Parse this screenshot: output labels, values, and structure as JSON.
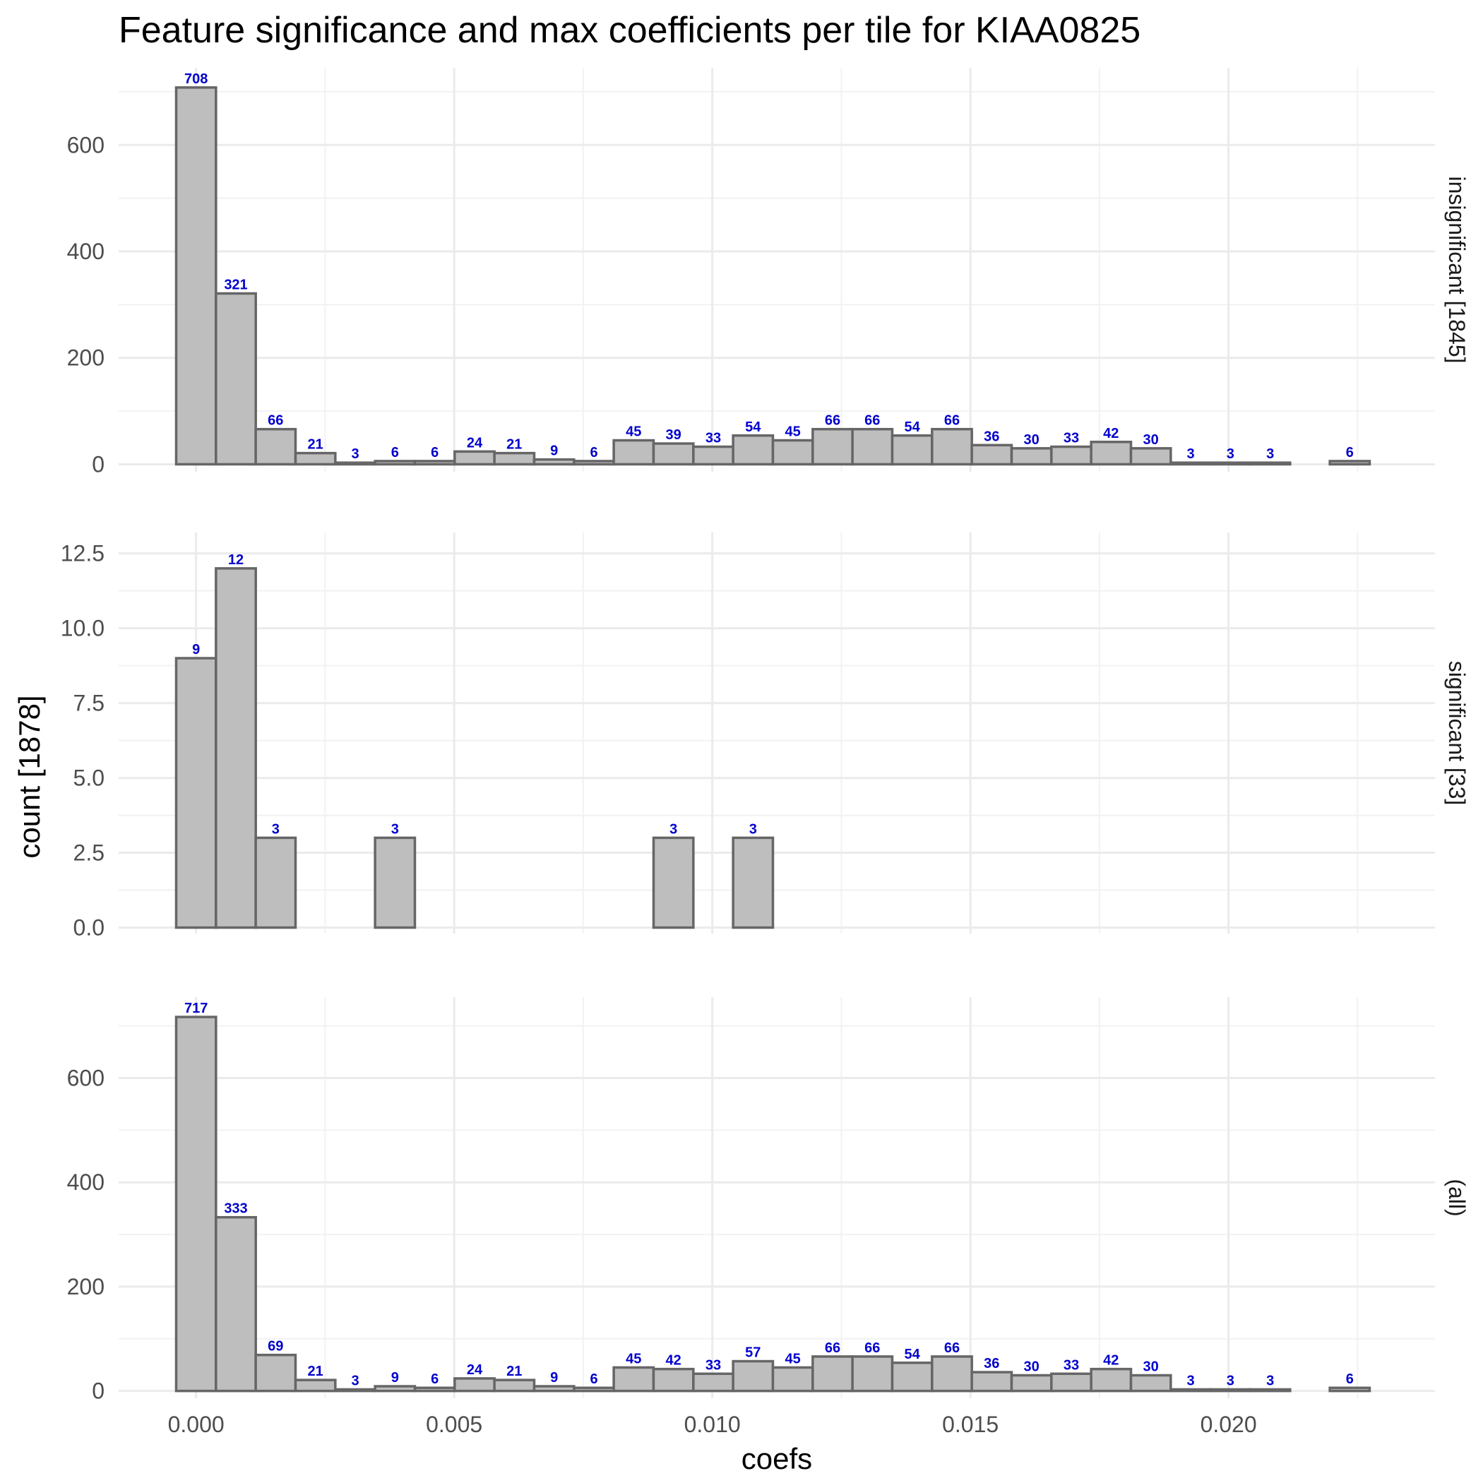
{
  "chart_data": {
    "type": "bar",
    "title": "Feature significance and max coefficients per tile for KIAA0825",
    "xlabel": "coefs",
    "ylabel": "count [1878]",
    "x_ticks": [
      "0.000",
      "0.005",
      "0.010",
      "0.015",
      "0.020"
    ],
    "x_tick_values": [
      0.0,
      0.005,
      0.01,
      0.015,
      0.02
    ],
    "xlim": [
      -0.0015,
      0.024
    ],
    "bin_centers": [
      0.0,
      0.000771,
      0.001541,
      0.002312,
      0.003083,
      0.003853,
      0.004624,
      0.005395,
      0.006165,
      0.006936,
      0.007707,
      0.008477,
      0.009248,
      0.010019,
      0.010789,
      0.01156,
      0.012331,
      0.013101,
      0.013872,
      0.014643,
      0.015413,
      0.016184,
      0.016955,
      0.017725,
      0.018496,
      0.019267,
      0.020037,
      0.020808,
      0.021579,
      0.022349
    ],
    "grid": true,
    "series": [
      {
        "name": "insignificant [1845]",
        "values": [
          708,
          321,
          66,
          21,
          3,
          6,
          6,
          24,
          21,
          9,
          6,
          45,
          39,
          33,
          54,
          45,
          66,
          66,
          54,
          66,
          36,
          30,
          33,
          42,
          30,
          3,
          3,
          3,
          0,
          6
        ],
        "labels": [
          "708",
          "321",
          "66",
          "21",
          "3",
          "6",
          "6",
          "24",
          "21",
          "9",
          "6",
          "45",
          "39",
          "33",
          "54",
          "45",
          "66",
          "66",
          "54",
          "66",
          "36",
          "30",
          "33",
          "42",
          "30",
          "3",
          "3",
          "3",
          "",
          "6"
        ],
        "ylim": [
          -14,
          745
        ],
        "y_ticks": [
          "0",
          "200",
          "400",
          "600"
        ],
        "y_tick_values": [
          0,
          200,
          400,
          600
        ]
      },
      {
        "name": "significant [33]",
        "values": [
          9,
          12,
          3,
          0,
          0,
          3,
          0,
          0,
          0,
          0,
          0,
          0,
          3,
          0,
          3,
          0,
          0,
          0,
          0,
          0,
          0,
          0,
          0,
          0,
          0,
          0,
          0,
          0,
          0,
          0
        ],
        "labels": [
          "9",
          "12",
          "3",
          "",
          "",
          "3",
          "",
          "",
          "",
          "",
          "",
          "",
          "3",
          "",
          "3",
          "",
          "",
          "",
          "",
          "",
          "",
          "",
          "",
          "",
          "",
          "",
          "",
          "",
          "",
          ""
        ],
        "ylim": [
          -0.2,
          13.2
        ],
        "y_ticks": [
          "0.0",
          "2.5",
          "5.0",
          "7.5",
          "10.0",
          "12.5"
        ],
        "y_tick_values": [
          0,
          2.5,
          5,
          7.5,
          10,
          12.5
        ]
      },
      {
        "name": "(all)",
        "values": [
          717,
          333,
          69,
          21,
          3,
          9,
          6,
          24,
          21,
          9,
          6,
          45,
          42,
          33,
          57,
          45,
          66,
          66,
          54,
          66,
          36,
          30,
          33,
          42,
          30,
          3,
          3,
          3,
          0,
          6
        ],
        "labels": [
          "717",
          "333",
          "69",
          "21",
          "3",
          "9",
          "6",
          "24",
          "21",
          "9",
          "6",
          "45",
          "42",
          "33",
          "57",
          "45",
          "66",
          "66",
          "54",
          "66",
          "36",
          "30",
          "33",
          "42",
          "30",
          "3",
          "3",
          "3",
          "",
          "6"
        ],
        "ylim": [
          -14,
          755
        ],
        "y_ticks": [
          "0",
          "200",
          "400",
          "600"
        ],
        "y_tick_values": [
          0,
          200,
          400,
          600
        ]
      }
    ],
    "colors": {
      "bar_fill": "#bebebe",
      "bar_outline": "#666666",
      "label": "#0000cd",
      "grid": "#ebebeb"
    }
  }
}
